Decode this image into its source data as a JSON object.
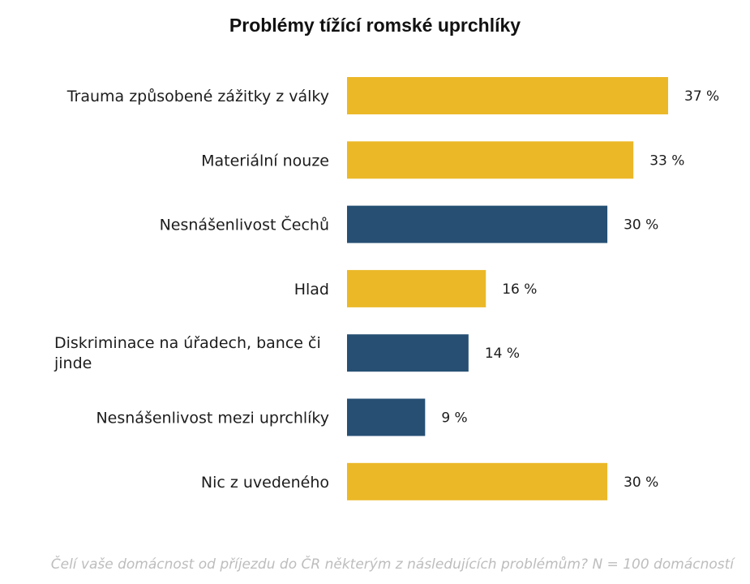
{
  "chart_data": {
    "type": "bar",
    "orientation": "horizontal",
    "title": "Problémy tížící romské uprchlíky",
    "categories": [
      "Trauma způsobené zážitky z války",
      "Materiální nouze",
      "Nesnášenlivost Čechů",
      "Hlad",
      "Diskriminace na úřadech, bance či jinde",
      "Nesnášenlivost mezi uprchlíky",
      "Nic z uvedeného"
    ],
    "values": [
      37,
      33,
      30,
      16,
      14,
      9,
      30
    ],
    "value_labels": [
      "37 %",
      "33 %",
      "30 %",
      "16 %",
      "14 %",
      "9 %",
      "30 %"
    ],
    "bar_colors": [
      "#EBB828",
      "#EBB828",
      "#264F73",
      "#EBB828",
      "#264F73",
      "#264F73",
      "#EBB828"
    ],
    "xlim": [
      0,
      37
    ],
    "grid": false,
    "legend": "none",
    "footnote": "Čelí vaše domácnost od příjezdu do ČR některým z následujících problémům? N = 100 domácností"
  }
}
